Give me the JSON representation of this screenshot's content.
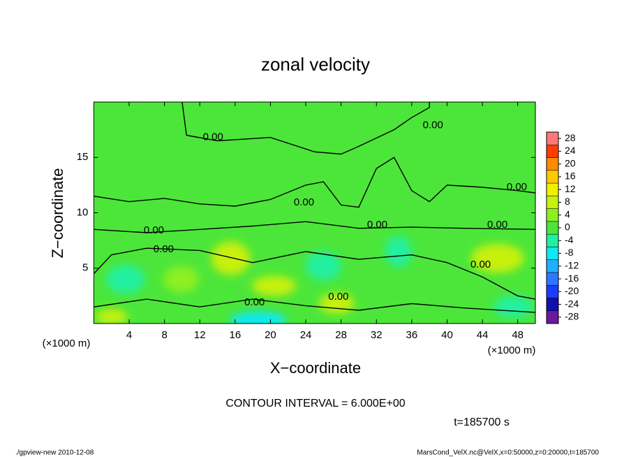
{
  "chart_data": {
    "type": "contour",
    "title": "zonal velocity",
    "xlabel": "X−coordinate",
    "ylabel": "Z−coordinate",
    "x_unit_labels": [
      "(×1000 m)",
      "(×1000 m)"
    ],
    "xlim": [
      0,
      50
    ],
    "ylim": [
      0,
      20
    ],
    "xticks": [
      4,
      8,
      12,
      16,
      20,
      24,
      28,
      32,
      36,
      40,
      44,
      48
    ],
    "yticks": [
      5,
      10,
      15
    ],
    "background_value": 0,
    "blobs": [
      {
        "x": 15.5,
        "z": 5.9,
        "rx": 2.2,
        "rz": 1.5,
        "value": 8
      },
      {
        "x": 20.4,
        "z": 3.4,
        "rx": 2.5,
        "rz": 0.9,
        "value": 6
      },
      {
        "x": 27.5,
        "z": 1.8,
        "rx": 2.0,
        "rz": 0.9,
        "value": 6
      },
      {
        "x": 45.7,
        "z": 5.9,
        "rx": 3.0,
        "rz": 1.3,
        "value": 8
      },
      {
        "x": 2.0,
        "z": 0.6,
        "rx": 1.8,
        "rz": 0.7,
        "value": 6
      },
      {
        "x": 9.9,
        "z": 4.0,
        "rx": 2.0,
        "rz": 1.2,
        "value": 4
      },
      {
        "x": 18.6,
        "z": 0.3,
        "rx": 3.2,
        "rz": 0.8,
        "value": -10
      },
      {
        "x": 3.6,
        "z": 4.0,
        "rx": 2.2,
        "rz": 1.3,
        "value": -4
      },
      {
        "x": 26.0,
        "z": 5.2,
        "rx": 2.0,
        "rz": 1.3,
        "value": -4
      },
      {
        "x": 34.5,
        "z": 6.5,
        "rx": 1.5,
        "rz": 1.4,
        "value": -6
      },
      {
        "x": 47.5,
        "z": 1.5,
        "rx": 2.2,
        "rz": 1.0,
        "value": -5
      }
    ],
    "contours": [
      {
        "level": 0,
        "points": [
          [
            10,
            20
          ],
          [
            10.5,
            17
          ],
          [
            14,
            16.5
          ],
          [
            20,
            16.8
          ],
          [
            25,
            15.5
          ],
          [
            28,
            15.3
          ],
          [
            30,
            16
          ],
          [
            34,
            17.5
          ],
          [
            36,
            18.6
          ],
          [
            38,
            19.5
          ],
          [
            38,
            20
          ]
        ]
      },
      {
        "level": 0,
        "points": [
          [
            0,
            11.5
          ],
          [
            4,
            11
          ],
          [
            8,
            11.3
          ],
          [
            12,
            10.8
          ],
          [
            16,
            10.6
          ],
          [
            20,
            11.2
          ],
          [
            24,
            12.5
          ],
          [
            26,
            12.8
          ],
          [
            28,
            10.7
          ],
          [
            30,
            10.5
          ],
          [
            32,
            14
          ],
          [
            34,
            15
          ],
          [
            36,
            12
          ],
          [
            38,
            11
          ],
          [
            40,
            12.5
          ],
          [
            44,
            12.3
          ],
          [
            48,
            12
          ],
          [
            50,
            11.8
          ]
        ]
      },
      {
        "level": 0,
        "points": [
          [
            0,
            8.5
          ],
          [
            6,
            8.2
          ],
          [
            12,
            8.5
          ],
          [
            18,
            8.8
          ],
          [
            24,
            9.2
          ],
          [
            30,
            8.6
          ],
          [
            36,
            8.7
          ],
          [
            42,
            8.6
          ],
          [
            50,
            8.5
          ]
        ]
      },
      {
        "level": 0,
        "points": [
          [
            0,
            4.5
          ],
          [
            2,
            6.2
          ],
          [
            6,
            6.8
          ],
          [
            12,
            6.6
          ],
          [
            18,
            5.5
          ],
          [
            24,
            6.5
          ],
          [
            30,
            5.8
          ],
          [
            36,
            6.2
          ],
          [
            40,
            5.5
          ],
          [
            44,
            4.2
          ],
          [
            48,
            2.5
          ],
          [
            50,
            2.2
          ]
        ]
      },
      {
        "level": 0,
        "points": [
          [
            0,
            1.5
          ],
          [
            6,
            2.2
          ],
          [
            12,
            1.5
          ],
          [
            18,
            2.2
          ],
          [
            24,
            1.6
          ],
          [
            30,
            1.2
          ],
          [
            36,
            1.8
          ],
          [
            42,
            1.4
          ],
          [
            50,
            1.0
          ]
        ]
      }
    ],
    "contour_labels": [
      {
        "x": 13.5,
        "z": 16.8,
        "label": "0.00"
      },
      {
        "x": 38.4,
        "z": 17.9,
        "label": "0.00"
      },
      {
        "x": 23.8,
        "z": 10.9,
        "label": "0.00"
      },
      {
        "x": 32.1,
        "z": 8.9,
        "label": "0.00"
      },
      {
        "x": 6.8,
        "z": 8.4,
        "label": "0.00"
      },
      {
        "x": 7.9,
        "z": 6.7,
        "label": "0.00"
      },
      {
        "x": 45.7,
        "z": 8.9,
        "label": "0.00"
      },
      {
        "x": 47.9,
        "z": 12.3,
        "label": "0.00"
      },
      {
        "x": 43.8,
        "z": 5.3,
        "label": "0.00"
      },
      {
        "x": 27.7,
        "z": 2.4,
        "label": "0.00"
      },
      {
        "x": 18.2,
        "z": 1.9,
        "label": "0.00"
      }
    ],
    "colorbar": {
      "clim": [
        -30,
        30
      ],
      "colors": [
        "#6a1a9a",
        "#1010b0",
        "#1a3cff",
        "#2a78ff",
        "#20b0ff",
        "#10e8f0",
        "#20f0a0",
        "#4ce63a",
        "#8cf020",
        "#c8f010",
        "#f0f000",
        "#ffc800",
        "#ff8c00",
        "#ff3c00",
        "#ff7878"
      ],
      "ticks": [
        -28,
        -24,
        -20,
        -16,
        -12,
        -8,
        -4,
        0,
        4,
        8,
        12,
        16,
        20,
        24,
        28
      ]
    },
    "annotations": [
      "CONTOUR INTERVAL = 6.000E+00",
      "t=185700 s"
    ],
    "footer_left": "./gpview-new  2010-12-08",
    "footer_right": "MarsCond_VelX.nc@VelX,x=0:50000,z=0:20000,t=185700"
  }
}
